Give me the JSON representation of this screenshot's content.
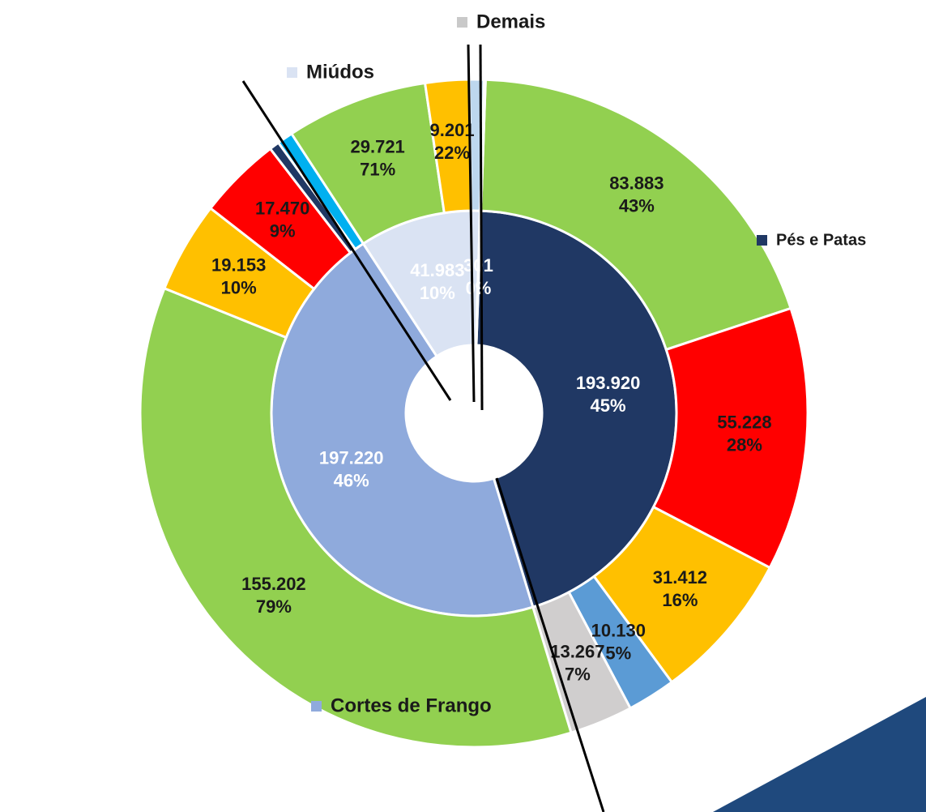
{
  "chart_data": {
    "type": "sunburst",
    "series": [
      {
        "name": "Pés e Patas",
        "color": "#203864",
        "value": 193920,
        "value_label": "193.920",
        "percent_label": "45%",
        "children": [
          {
            "value": 83883,
            "color": "#92d050",
            "value_label": "83.883",
            "percent_label": "43%"
          },
          {
            "value": 55228,
            "color": "#ff0000",
            "value_label": "55.228",
            "percent_label": "28%"
          },
          {
            "value": 31412,
            "color": "#ffc000",
            "value_label": "31.412",
            "percent_label": "16%"
          },
          {
            "value": 10130,
            "color": "#5b9bd5",
            "value_label": "10.130",
            "percent_label": "5%"
          },
          {
            "value": 13267,
            "color": "#d0cece",
            "value_label": "13.267",
            "percent_label": "7%"
          }
        ]
      },
      {
        "name": "Cortes de Frango",
        "color": "#8faadc",
        "value": 197220,
        "value_label": "197.220",
        "percent_label": "46%",
        "children": [
          {
            "value": 155202,
            "color": "#92d050",
            "value_label": "155.202",
            "percent_label": "79%"
          },
          {
            "value": 19153,
            "color": "#ffc000",
            "value_label": "19.153",
            "percent_label": "10%"
          },
          {
            "value": 17470,
            "color": "#ff0000",
            "value_label": "17.470",
            "percent_label": "9%"
          },
          {
            "value": 2100,
            "color": "#203864"
          },
          {
            "value": 3295,
            "color": "#00b0f0"
          }
        ]
      },
      {
        "name": "Miúdos",
        "color": "#dae3f3",
        "value": 41983,
        "value_label": "41.983",
        "percent_label": "10%",
        "children": [
          {
            "value": 29721,
            "color": "#92d050",
            "value_label": "29.721",
            "percent_label": "71%"
          },
          {
            "value": 9201,
            "color": "#ffc000",
            "value_label": "9.201",
            "percent_label": "22%"
          },
          {
            "value": 3061,
            "color": "#bdd7ee"
          }
        ]
      },
      {
        "name": "Demais",
        "color": "#c9c9c9",
        "value": 301,
        "value_label": "301",
        "percent_label": "0%",
        "children": [
          {
            "value": 301,
            "color": "#ff0000"
          }
        ]
      }
    ]
  }
}
